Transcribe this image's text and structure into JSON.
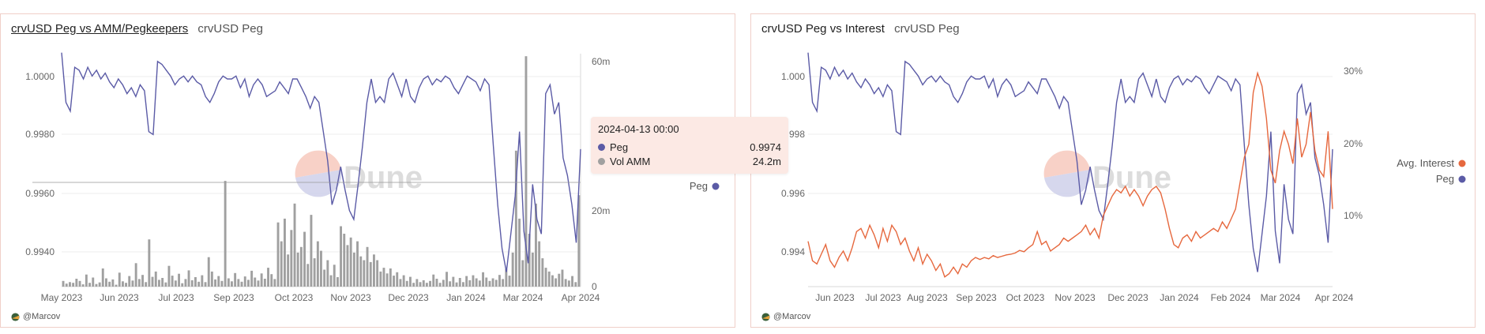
{
  "colors": {
    "peg": "#5b5ba6",
    "vol": "#a0a0a0",
    "interest": "#e6683e",
    "grid": "#ececec",
    "border": "#f0cfc8",
    "tooltip_bg": "#fce9e4"
  },
  "watermark": {
    "text": "Dune"
  },
  "panels": [
    {
      "title": "crvUSD Peg vs AMM/Pegkeepers",
      "subtitle": "crvUSD Peg",
      "footer": "@Marcov",
      "legend": [
        {
          "label": "Peg",
          "color": "#5b5ba6"
        }
      ],
      "tooltip": {
        "date": "2024-04-13 00:00",
        "rows": [
          {
            "label": "Peg",
            "value": "0.9974",
            "color": "#5b5ba6"
          },
          {
            "label": "Vol AMM",
            "value": "24.2m",
            "color": "#a0a0a0"
          }
        ]
      }
    },
    {
      "title": "crvUSD Peg vs Interest",
      "subtitle": "crvUSD Peg",
      "footer": "@Marcov",
      "legend": [
        {
          "label": "Avg. Interest",
          "color": "#e6683e"
        },
        {
          "label": "Peg",
          "color": "#5b5ba6"
        }
      ]
    }
  ],
  "chart_data": [
    {
      "type": "line+bar",
      "title": "crvUSD Peg vs AMM/Pegkeepers",
      "x_ticks": [
        "May 2023",
        "Jun 2023",
        "Jul 2023",
        "Sep 2023",
        "Oct 2023",
        "Nov 2023",
        "Dec 2023",
        "Jan 2024",
        "Mar 2024",
        "Apr 2024"
      ],
      "x_range": [
        "2023-05-01",
        "2024-04-13"
      ],
      "y_left": {
        "ticks": [
          "1.0000",
          "0.9980",
          "0.9960",
          "0.9940"
        ],
        "range": [
          0.9927,
          1.0008
        ]
      },
      "y_right": {
        "ticks": [
          "60m",
          "20m",
          "0"
        ],
        "range": [
          0,
          60
        ]
      },
      "series": [
        {
          "name": "Peg",
          "axis": "left",
          "type": "line",
          "values": [
            1.0007,
            0.999,
            0.9987,
            1.0002,
            1.0001,
            0.9998,
            1.0002,
            0.9999,
            1.0001,
            0.9998,
            1.0,
            0.9997,
            0.9995,
            0.9998,
            0.9996,
            0.9993,
            0.9995,
            0.9992,
            0.9996,
            0.9994,
            0.998,
            0.9979,
            1.0004,
            1.0003,
            1.0001,
            0.9999,
            0.9996,
            0.9998,
            0.9999,
            0.9997,
            0.9999,
            0.9997,
            0.9996,
            0.9992,
            0.999,
            0.9993,
            0.9997,
            0.9999,
            0.9998,
            0.9998,
            0.9999,
            0.9995,
            0.9998,
            0.9992,
            0.9996,
            0.9998,
            0.9996,
            0.9992,
            0.9993,
            0.9994,
            0.9997,
            0.9995,
            0.9993,
            0.9998,
            0.9998,
            0.9995,
            0.9992,
            0.9988,
            0.9992,
            0.999,
            0.998,
            0.997,
            0.9955,
            0.996,
            0.9968,
            0.996,
            0.9953,
            0.995,
            0.9962,
            0.9975,
            0.999,
            0.9998,
            0.999,
            0.9992,
            0.999,
            0.9998,
            1.0,
            0.9996,
            0.9992,
            0.9998,
            0.9992,
            0.999,
            0.9995,
            0.9998,
            0.9999,
            0.9996,
            0.9998,
            0.9997,
            0.9999,
            0.9998,
            0.9995,
            0.9993,
            0.9996,
            0.9999,
            0.9998,
            0.9997,
            0.9994,
            0.9998,
            0.9996,
            0.9975,
            0.9955,
            0.994,
            0.9932,
            0.9945,
            0.9958,
            0.998,
            0.9946,
            0.9935,
            0.9962,
            0.995,
            0.9945,
            0.9993,
            0.9996,
            0.9986,
            0.999,
            0.9971,
            0.9965,
            0.9955,
            0.9942,
            0.9974
          ]
        },
        {
          "name": "Vol AMM",
          "axis": "right",
          "type": "bar",
          "values": [
            1.5,
            0.8,
            1.2,
            1.0,
            2.1,
            1.5,
            0.6,
            3.2,
            1.0,
            2.4,
            0.7,
            1.1,
            4.8,
            2.2,
            1.3,
            1.9,
            0.5,
            3.7,
            1.4,
            1.0,
            2.8,
            1.6,
            6.2,
            2.0,
            3.1,
            1.2,
            12.5,
            2.6,
            4.0,
            1.8,
            2.3,
            1.1,
            5.5,
            2.9,
            1.6,
            3.4,
            0.9,
            2.0,
            4.3,
            1.7,
            2.5,
            1.3,
            3.0,
            1.2,
            7.8,
            4.0,
            1.9,
            2.8,
            1.5,
            28.0,
            2.2,
            1.4,
            3.6,
            2.0,
            1.3,
            2.7,
            1.8,
            4.2,
            2.4,
            1.6,
            3.5,
            2.1,
            5.0,
            3.3,
            2.0,
            17.0,
            12.0,
            18.0,
            8.5,
            15.0,
            22.0,
            9.0,
            10.5,
            14.5,
            6.0,
            19.0,
            7.5,
            12.0,
            9.5,
            4.5,
            7.0,
            3.0,
            5.8,
            2.5,
            16.0,
            14.0,
            11.0,
            13.0,
            9.0,
            12.0,
            8.0,
            7.0,
            10.5,
            6.5,
            8.5,
            7.0,
            4.0,
            5.0,
            3.5,
            4.8,
            2.9,
            3.8,
            2.0,
            3.0,
            1.5,
            2.6,
            1.0,
            2.0,
            1.2,
            1.7,
            1.0,
            1.5,
            3.2,
            2.1,
            1.0,
            1.8,
            3.9,
            1.4,
            2.6,
            1.1,
            2.3,
            1.2,
            2.8,
            1.7,
            3.0,
            2.2,
            1.6,
            3.8,
            2.4,
            1.5,
            2.2,
            1.8,
            3.1,
            2.0,
            4.6,
            2.9,
            9.0,
            36.0,
            18.0,
            7.0,
            61.0,
            14.0,
            9.0,
            22.0,
            12.0,
            7.5,
            5.0,
            4.0,
            3.0,
            2.2,
            3.4,
            4.5,
            2.0,
            1.6,
            2.8,
            1.2,
            24.2
          ]
        }
      ]
    },
    {
      "type": "line",
      "title": "crvUSD Peg vs Interest",
      "x_ticks": [
        "Jun 2023",
        "Jul 2023",
        "Aug 2023",
        "Sep 2023",
        "Oct 2023",
        "Nov 2023",
        "Dec 2023",
        "Jan 2024",
        "Feb 2024",
        "Mar 2024",
        "Apr 2024"
      ],
      "x_range": [
        "2023-05-01",
        "2024-04-13"
      ],
      "y_left": {
        "ticks": [
          "1.000",
          "0.998",
          "0.996",
          "0.994"
        ],
        "range": [
          0.9927,
          1.0008
        ]
      },
      "y_right": {
        "ticks": [
          "30%",
          "20%",
          "10%"
        ],
        "range": [
          0,
          36
        ]
      },
      "series": [
        {
          "name": "Peg",
          "axis": "left",
          "type": "line",
          "values": [
            1.0007,
            0.999,
            0.9987,
            1.0002,
            1.0001,
            0.9998,
            1.0002,
            0.9999,
            1.0001,
            0.9998,
            1.0,
            0.9997,
            0.9995,
            0.9998,
            0.9996,
            0.9993,
            0.9995,
            0.9992,
            0.9996,
            0.9994,
            0.998,
            0.9979,
            1.0004,
            1.0003,
            1.0001,
            0.9999,
            0.9996,
            0.9998,
            0.9999,
            0.9997,
            0.9999,
            0.9997,
            0.9996,
            0.9992,
            0.999,
            0.9993,
            0.9997,
            0.9999,
            0.9998,
            0.9998,
            0.9999,
            0.9995,
            0.9998,
            0.9992,
            0.9996,
            0.9998,
            0.9996,
            0.9992,
            0.9993,
            0.9994,
            0.9997,
            0.9995,
            0.9993,
            0.9998,
            0.9998,
            0.9995,
            0.9992,
            0.9988,
            0.9992,
            0.999,
            0.998,
            0.997,
            0.9955,
            0.996,
            0.9968,
            0.996,
            0.9953,
            0.995,
            0.9962,
            0.9975,
            0.999,
            0.9998,
            0.999,
            0.9992,
            0.999,
            0.9998,
            1.0,
            0.9996,
            0.9992,
            0.9998,
            0.9992,
            0.999,
            0.9995,
            0.9998,
            0.9999,
            0.9996,
            0.9998,
            0.9997,
            0.9999,
            0.9998,
            0.9995,
            0.9993,
            0.9996,
            0.9999,
            0.9998,
            0.9997,
            0.9994,
            0.9998,
            0.9996,
            0.9975,
            0.9955,
            0.994,
            0.9932,
            0.9945,
            0.9958,
            0.998,
            0.9946,
            0.9935,
            0.9962,
            0.995,
            0.9945,
            0.9993,
            0.9996,
            0.9986,
            0.999,
            0.9971,
            0.9965,
            0.9955,
            0.9942,
            0.9974
          ]
        },
        {
          "name": "Avg. Interest",
          "axis": "right",
          "type": "line",
          "values": [
            7.0,
            4.0,
            3.5,
            5.0,
            6.5,
            4.0,
            3.0,
            4.5,
            5.5,
            4.0,
            6.0,
            8.5,
            9.0,
            7.5,
            9.5,
            8.0,
            6.0,
            9.0,
            7.0,
            9.5,
            8.5,
            6.5,
            7.5,
            5.5,
            4.0,
            6.0,
            3.5,
            5.0,
            4.0,
            2.5,
            3.5,
            1.5,
            2.0,
            3.0,
            2.0,
            3.5,
            3.0,
            4.0,
            4.5,
            4.2,
            4.5,
            4.3,
            4.8,
            4.5,
            4.7,
            4.9,
            5.0,
            5.2,
            5.6,
            5.4,
            6.0,
            6.5,
            8.5,
            6.5,
            7.0,
            5.5,
            6.0,
            6.5,
            7.5,
            7.0,
            7.5,
            8.0,
            8.5,
            9.5,
            8.0,
            9.0,
            7.5,
            11.0,
            12.5,
            14.0,
            15.0,
            14.5,
            15.5,
            14.0,
            15.0,
            14.0,
            12.5,
            14.0,
            15.0,
            15.5,
            14.5,
            12.0,
            9.0,
            6.5,
            6.0,
            7.5,
            8.0,
            7.0,
            8.5,
            7.5,
            8.0,
            8.5,
            9.0,
            8.5,
            10.0,
            9.0,
            10.5,
            12.0,
            16.0,
            20.0,
            22.0,
            30.0,
            33.0,
            31.0,
            26.0,
            18.0,
            16.0,
            21.0,
            24.0,
            22.0,
            19.0,
            26.0,
            20.0,
            22.0,
            27.0,
            21.0,
            18.0,
            17.0,
            24.0,
            12.0
          ]
        }
      ]
    }
  ]
}
